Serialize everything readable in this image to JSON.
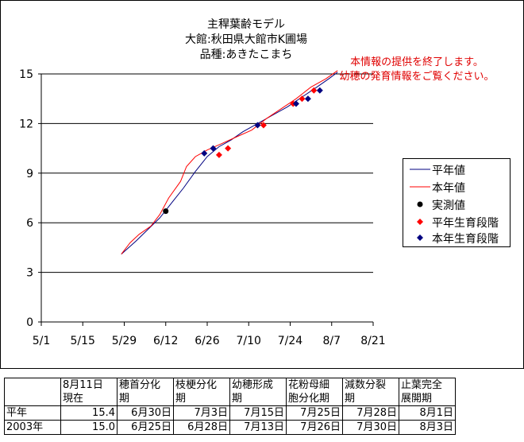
{
  "chart_data": {
    "type": "line",
    "title_lines": [
      "主稈葉齢モデル",
      "大館:秋田県大館市K圃場",
      "品種:あきたこまち"
    ],
    "notice_lines": [
      "本情報の提供を終了します。",
      "幼穂の発育情報をご覧ください。"
    ],
    "xlabel": "",
    "ylabel": "",
    "x_tick_labels": [
      "5/1",
      "5/15",
      "5/29",
      "6/12",
      "6/26",
      "7/10",
      "7/24",
      "8/7",
      "8/21"
    ],
    "y_tick_labels": [
      "0",
      "3",
      "6",
      "9",
      "12",
      "15"
    ],
    "ylim": [
      0,
      15
    ],
    "y_grid": [
      3,
      6,
      9,
      12,
      15
    ],
    "x_axis_start": "5/1",
    "x_axis_end": "8/21",
    "legend_position": "right",
    "series": [
      {
        "name": "平年値",
        "kind": "line",
        "color": "#000080",
        "points": [
          [
            "5/28",
            4.1
          ],
          [
            "6/2",
            4.9
          ],
          [
            "6/6",
            5.6
          ],
          [
            "6/10",
            6.3
          ],
          [
            "6/14",
            7.2
          ],
          [
            "6/18",
            8.1
          ],
          [
            "6/22",
            9.1
          ],
          [
            "6/26",
            10.0
          ],
          [
            "6/30",
            10.6
          ],
          [
            "7/4",
            11.0
          ],
          [
            "7/8",
            11.5
          ],
          [
            "7/13",
            12.0
          ],
          [
            "7/18",
            12.5
          ],
          [
            "7/23",
            13.0
          ],
          [
            "7/28",
            13.6
          ],
          [
            "8/2",
            14.2
          ],
          [
            "8/6",
            14.7
          ],
          [
            "8/9",
            15.1
          ]
        ]
      },
      {
        "name": "本年値",
        "kind": "line",
        "color": "#ff0000",
        "points": [
          [
            "5/28",
            4.1
          ],
          [
            "5/31",
            4.8
          ],
          [
            "6/3",
            5.3
          ],
          [
            "6/7",
            5.8
          ],
          [
            "6/10",
            6.5
          ],
          [
            "6/13",
            7.5
          ],
          [
            "6/17",
            8.5
          ],
          [
            "6/19",
            9.4
          ],
          [
            "6/22",
            10.0
          ],
          [
            "6/26",
            10.4
          ],
          [
            "7/1",
            10.8
          ],
          [
            "7/6",
            11.2
          ],
          [
            "7/11",
            11.6
          ],
          [
            "7/16",
            12.3
          ],
          [
            "7/21",
            12.9
          ],
          [
            "7/26",
            13.5
          ],
          [
            "7/31",
            14.2
          ],
          [
            "8/5",
            14.7
          ],
          [
            "8/9",
            15.2
          ]
        ]
      },
      {
        "name": "実測値",
        "kind": "marker",
        "marker": "circle",
        "color": "#000000",
        "points": [
          [
            "6/12",
            6.7
          ]
        ]
      },
      {
        "name": "平年生育段階",
        "kind": "marker",
        "marker": "diamond",
        "color": "#ff0000",
        "points": [
          [
            "6/30",
            10.1
          ],
          [
            "7/3",
            10.5
          ],
          [
            "7/15",
            11.9
          ],
          [
            "7/25",
            13.2
          ],
          [
            "7/28",
            13.5
          ],
          [
            "8/1",
            14.0
          ]
        ]
      },
      {
        "name": "本年生育段階",
        "kind": "marker",
        "marker": "diamond",
        "color": "#000080",
        "points": [
          [
            "6/25",
            10.2
          ],
          [
            "6/28",
            10.5
          ],
          [
            "7/13",
            11.9
          ],
          [
            "7/26",
            13.2
          ],
          [
            "7/30",
            13.5
          ],
          [
            "8/3",
            14.0
          ]
        ]
      }
    ]
  },
  "table": {
    "header": [
      "",
      "8月11日\n現在",
      "穂首分化\n期",
      "枝梗分化\n期",
      "幼穂形成\n期",
      "花粉母細\n胞分化期",
      "減数分裂\n期",
      "止葉完全\n展開期"
    ],
    "rows": [
      [
        "平年",
        "15.4",
        "6月30日",
        "7月3日",
        "7月15日",
        "7月25日",
        "7月28日",
        "8月1日"
      ],
      [
        "2003年",
        "15.0",
        "6月25日",
        "6月28日",
        "7月13日",
        "7月26日",
        "7月30日",
        "8月3日"
      ]
    ]
  }
}
